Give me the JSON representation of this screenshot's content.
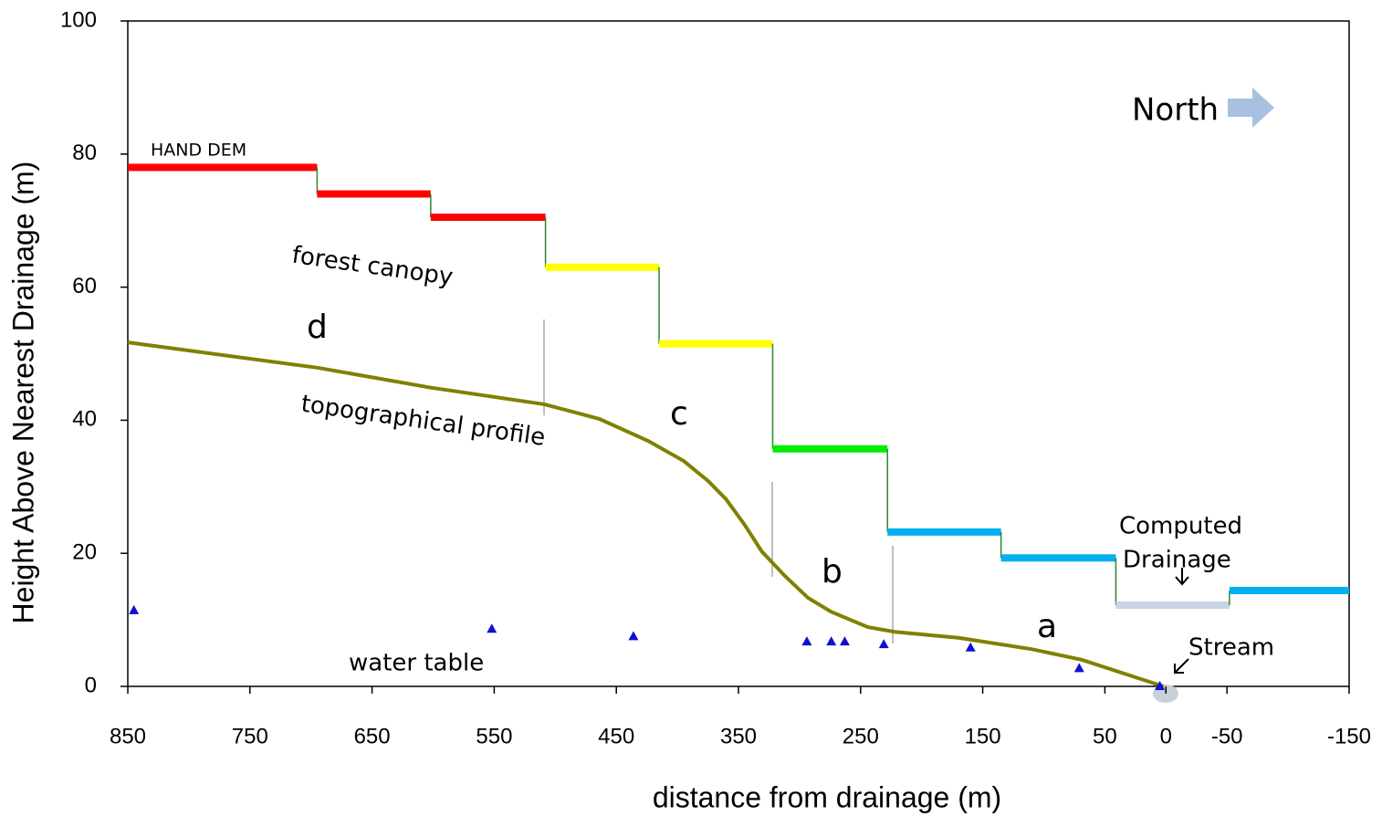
{
  "chart_data": {
    "type": "line",
    "xlabel": "distance from drainage (m)",
    "ylabel": "Height Above Nearest Drainage (m)",
    "xlim": [
      850,
      -150
    ],
    "ylim": [
      0,
      100
    ],
    "xticks": [
      850,
      750,
      650,
      550,
      450,
      350,
      250,
      150,
      50,
      0,
      -50,
      -150
    ],
    "yticks": [
      0,
      20,
      40,
      60,
      80,
      100
    ],
    "hand_dem": {
      "name": "HAND DEM",
      "steps": [
        {
          "x": [
            850,
            695
          ],
          "y": 78,
          "color": "#ff0000"
        },
        {
          "x": [
            695,
            602
          ],
          "y": 74,
          "color": "#ff0000"
        },
        {
          "x": [
            602,
            508
          ],
          "y": 70.5,
          "color": "#ff0000"
        },
        {
          "x": [
            508,
            415
          ],
          "y": 63,
          "color": "#ffff00"
        },
        {
          "x": [
            415,
            322
          ],
          "y": 51.5,
          "color": "#ffff00"
        },
        {
          "x": [
            322,
            228
          ],
          "y": 35.7,
          "color": "#00ee00"
        },
        {
          "x": [
            228,
            135
          ],
          "y": 23.2,
          "color": "#00b0f0"
        },
        {
          "x": [
            135,
            41
          ],
          "y": 19.3,
          "color": "#00b0f0"
        },
        {
          "x": [
            41,
            -52
          ],
          "y": 12.2,
          "color": "#c9d3e3"
        },
        {
          "x": [
            -52,
            -150
          ],
          "y": 14.4,
          "color": "#00b0f0"
        }
      ]
    },
    "series": [
      {
        "name": "topographical profile",
        "color": "#808000",
        "x": [
          850,
          695,
          602,
          509,
          464,
          424,
          395,
          375,
          360,
          345,
          331,
          312,
          293,
          274,
          244,
          222,
          170,
          110,
          69,
          2
        ],
        "values": [
          51.7,
          47.9,
          44.9,
          42.4,
          40.2,
          36.9,
          33.9,
          30.9,
          28.1,
          24.3,
          20.3,
          16.6,
          13.3,
          11.2,
          8.9,
          8.2,
          7.3,
          5.6,
          4.0,
          0
        ]
      },
      {
        "name": "water table",
        "color": "#1010d0",
        "x": [
          845,
          552,
          436,
          294,
          274,
          263,
          231,
          160,
          71,
          5
        ],
        "values": [
          11.4,
          8.6,
          7.5,
          6.7,
          6.7,
          6.7,
          6.3,
          5.8,
          2.7,
          0
        ]
      }
    ],
    "annotations": [
      "forest canopy",
      "d",
      "c",
      "b",
      "a",
      "Computed",
      "Drainage",
      "Stream",
      "North"
    ]
  }
}
